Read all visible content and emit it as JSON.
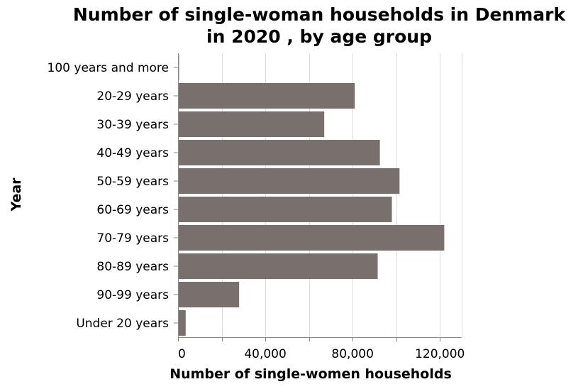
{
  "chart_data": {
    "type": "bar",
    "orientation": "horizontal",
    "title": [
      "Number of single-woman households in Denmark",
      "in 2020 , by age group"
    ],
    "xlabel": "Number of single-women households",
    "ylabel": "Year",
    "categories": [
      "100 years and more",
      "20-29 years",
      "30-39 years",
      "40-49 years",
      "50-59 years",
      "60-69 years",
      "70-79 years",
      "80-89 years",
      "90-99 years",
      "Under 20 years"
    ],
    "values": [
      400,
      81000,
      67000,
      92500,
      101500,
      98000,
      122000,
      91500,
      28000,
      3500
    ],
    "xlim": [
      0,
      130000
    ],
    "xticks": [
      0,
      40000,
      80000,
      120000
    ],
    "xtick_labels": [
      "0",
      "40,000",
      "80,000",
      "120,000"
    ],
    "grid": true,
    "bar_color": "#79706e"
  }
}
